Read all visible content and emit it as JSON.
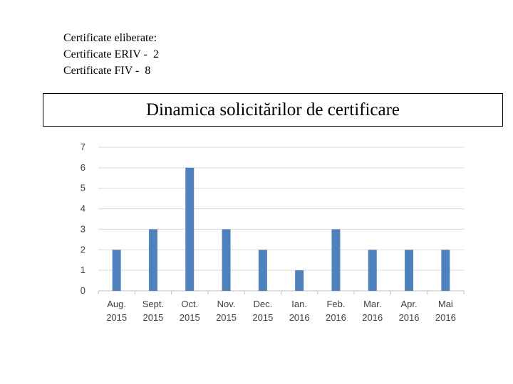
{
  "notes": {
    "line1": "Certificate eliberate:",
    "line2": "Certificate ERIV -  2",
    "line3": "Certificate FIV -  8"
  },
  "chart_data": {
    "type": "bar",
    "title": "Dinamica solicitărilor  de certificare",
    "categories": [
      [
        "Aug.",
        "2015"
      ],
      [
        "Sept.",
        "2015"
      ],
      [
        "Oct.",
        "2015"
      ],
      [
        "Nov.",
        "2015"
      ],
      [
        "Dec.",
        "2015"
      ],
      [
        "Ian.",
        "2016"
      ],
      [
        "Feb.",
        "2016"
      ],
      [
        "Mar.",
        "2016"
      ],
      [
        "Apr.",
        "2016"
      ],
      [
        "Mai",
        "2016"
      ]
    ],
    "values": [
      2,
      3,
      6,
      3,
      2,
      1,
      3,
      2,
      2,
      2
    ],
    "yticks": [
      0,
      1,
      2,
      3,
      4,
      5,
      6,
      7
    ],
    "ylim": [
      0,
      7
    ],
    "grid": true,
    "legend": "none",
    "colors": {
      "bar": "#4f81bd",
      "grid": "#d9d9d9",
      "axis": "#bfbfbf",
      "tick_text": "#404040"
    }
  }
}
